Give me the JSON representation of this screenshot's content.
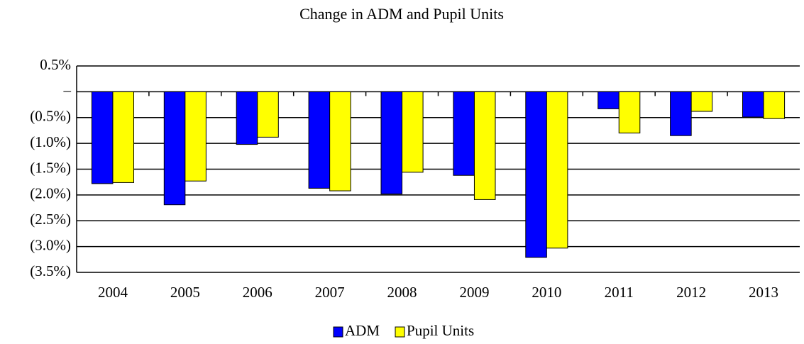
{
  "chart_data": {
    "type": "bar",
    "title": "Change in ADM and Pupil Units",
    "categories": [
      "2004",
      "2005",
      "2006",
      "2007",
      "2008",
      "2009",
      "2010",
      "2011",
      "2012",
      "2013"
    ],
    "series": [
      {
        "name": "ADM",
        "color": "#0000ff",
        "values": [
          -1.78,
          -2.19,
          -1.02,
          -1.87,
          -1.98,
          -1.62,
          -3.21,
          -0.33,
          -0.85,
          -0.49
        ]
      },
      {
        "name": "Pupil Units",
        "color": "#ffff00",
        "values": [
          -1.76,
          -1.73,
          -0.88,
          -1.92,
          -1.56,
          -2.09,
          -3.03,
          -0.8,
          -0.38,
          -0.52
        ]
      }
    ],
    "ylim": [
      -3.5,
      0.5
    ],
    "yticks": [
      {
        "value": 0.5,
        "label": "0.5%"
      },
      {
        "value": 0,
        "label": "–"
      },
      {
        "value": -0.5,
        "label": "(0.5%)"
      },
      {
        "value": -1.0,
        "label": "(1.0%)"
      },
      {
        "value": -1.5,
        "label": "(1.5%)"
      },
      {
        "value": -2.0,
        "label": "(2.0%)"
      },
      {
        "value": -2.5,
        "label": "(2.5%)"
      },
      {
        "value": -3.0,
        "label": "(3.0%)"
      },
      {
        "value": -3.5,
        "label": "(3.5%)"
      }
    ],
    "grid": true,
    "legend": "bottom"
  }
}
